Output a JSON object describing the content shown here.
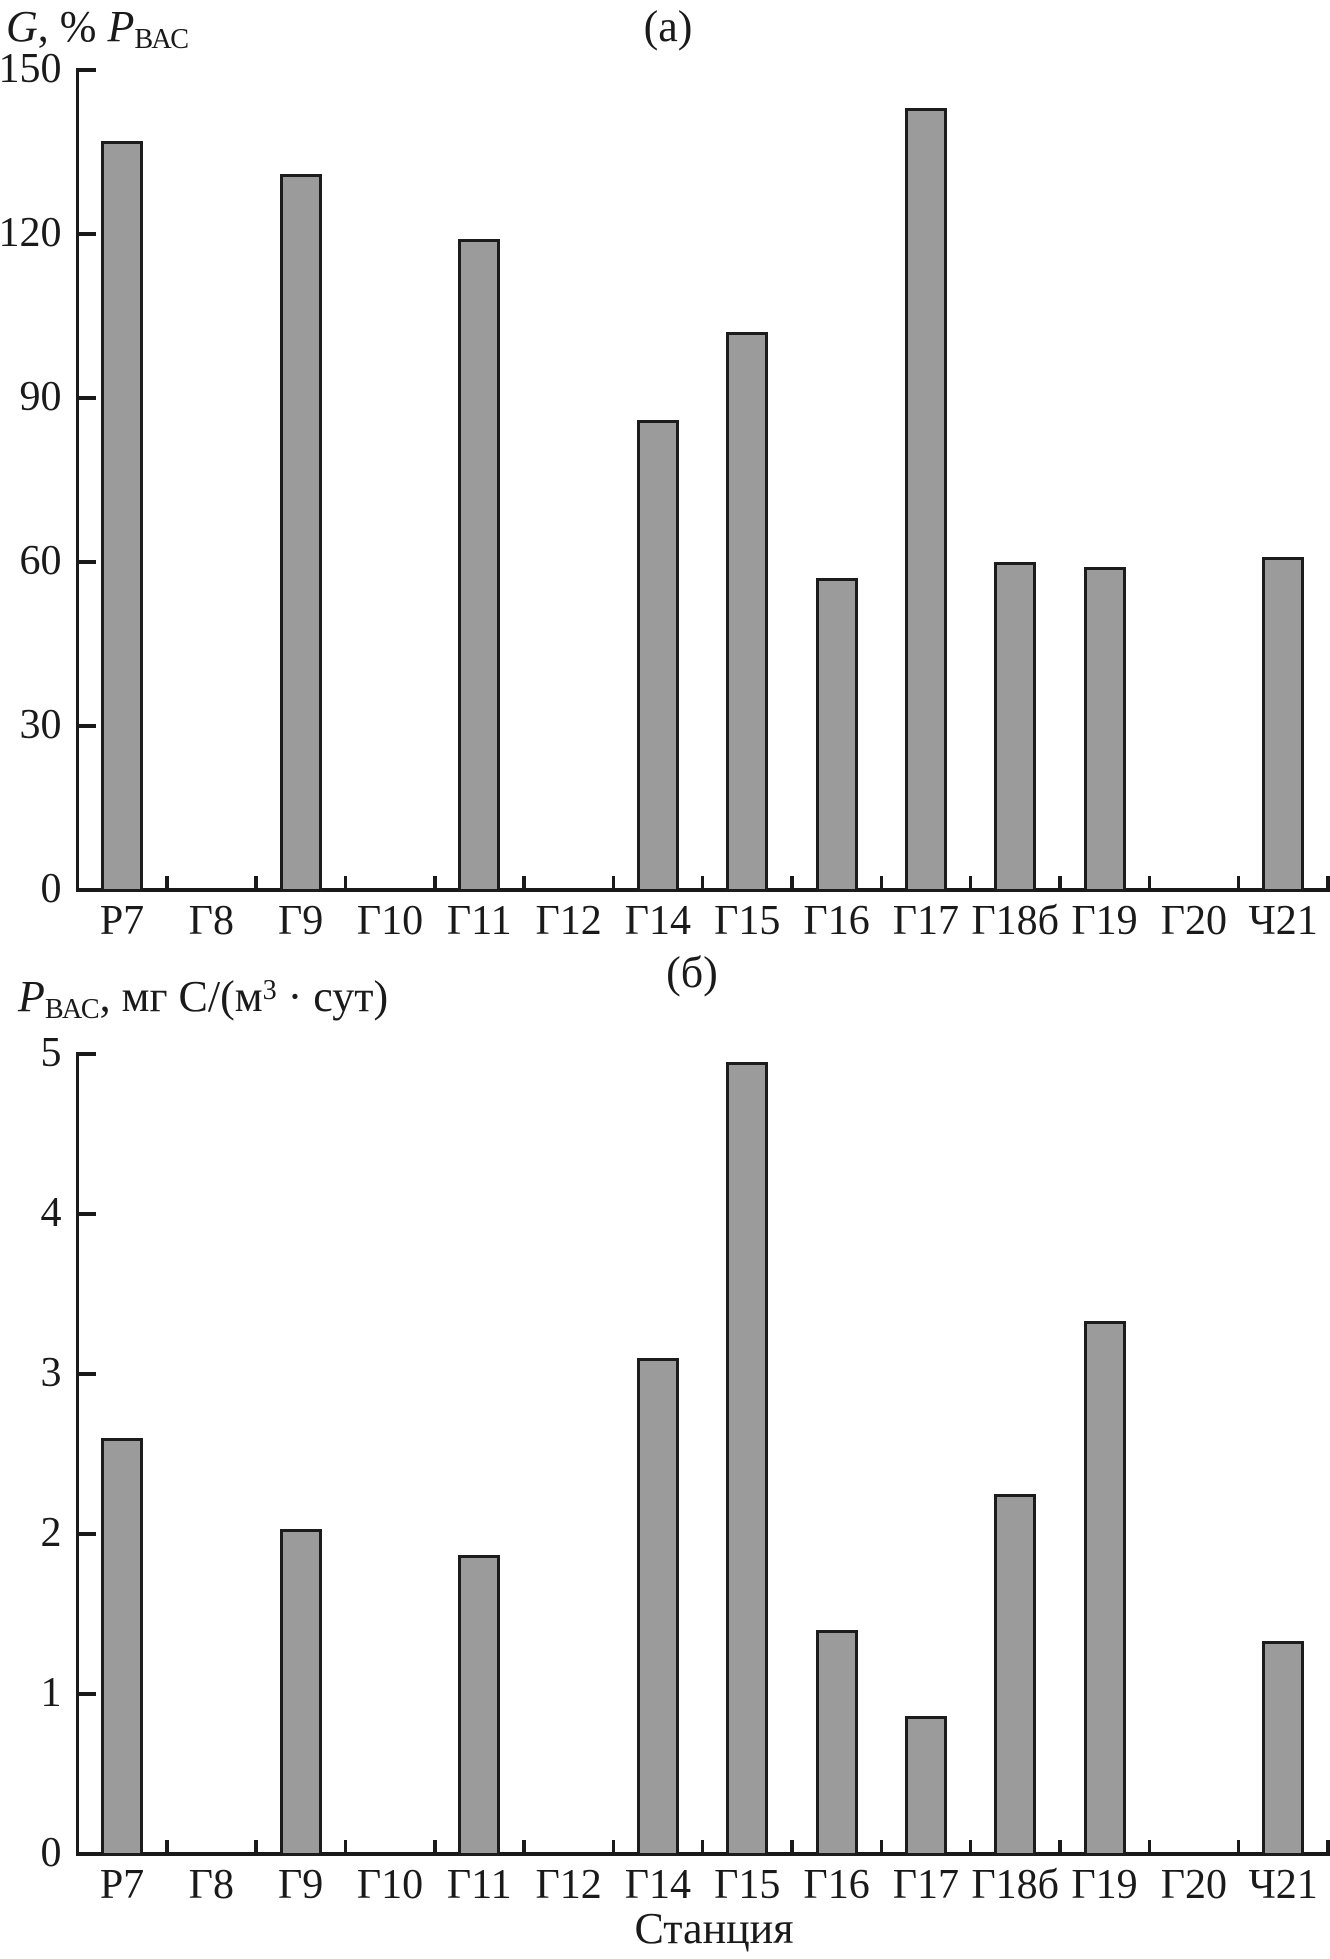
{
  "chart_data": [
    {
      "type": "bar",
      "panel_label": "(а)",
      "y_axis_title": "G, % PВАС",
      "y_axis_title_parts": [
        {
          "text": "G",
          "italic": true
        },
        {
          "text": ", % "
        },
        {
          "text": "P",
          "italic": true
        },
        {
          "text": "ВАС",
          "subscript": true
        }
      ],
      "categories": [
        "Р7",
        "Г8",
        "Г9",
        "Г10",
        "Г11",
        "Г12",
        "Г14",
        "Г15",
        "Г16",
        "Г17",
        "Г18б",
        "Г19",
        "Г20",
        "Ч21"
      ],
      "values": [
        137,
        0,
        131,
        0,
        119,
        0,
        86,
        102,
        57,
        143,
        60,
        59,
        0,
        61
      ],
      "ylim": [
        0,
        150
      ],
      "yticks": [
        0,
        30,
        60,
        90,
        120,
        150
      ],
      "grid": false,
      "legend": null,
      "bar_color": "#9b9b9b",
      "bar_border_color": "#1c1c1c",
      "axis_color": "#1a1a1a"
    },
    {
      "type": "bar",
      "panel_label": "(б)",
      "y_axis_title": "PВАС, мг С/(м3 · сут)",
      "y_axis_title_parts": [
        {
          "text": "P",
          "italic": true
        },
        {
          "text": "ВАС",
          "subscript": true
        },
        {
          "text": ", мг С/(м"
        },
        {
          "text": "3",
          "superscript": true
        },
        {
          "text": " · сут)"
        }
      ],
      "xlabel": "Станция",
      "categories": [
        "Р7",
        "Г8",
        "Г9",
        "Г10",
        "Г11",
        "Г12",
        "Г14",
        "Г15",
        "Г16",
        "Г17",
        "Г18б",
        "Г19",
        "Г20",
        "Ч21"
      ],
      "values": [
        2.6,
        0,
        2.03,
        0,
        1.87,
        0,
        3.1,
        4.95,
        1.4,
        0.86,
        2.25,
        3.33,
        0,
        1.33
      ],
      "ylim": [
        0,
        5
      ],
      "yticks": [
        0,
        1,
        2,
        3,
        4,
        5
      ],
      "grid": false,
      "legend": null,
      "bar_color": "#9b9b9b",
      "bar_border_color": "#1c1c1c",
      "axis_color": "#1a1a1a"
    }
  ]
}
